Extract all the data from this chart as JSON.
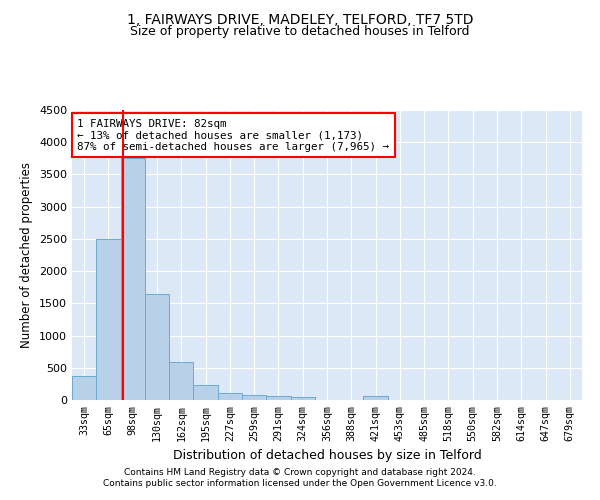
{
  "title1": "1, FAIRWAYS DRIVE, MADELEY, TELFORD, TF7 5TD",
  "title2": "Size of property relative to detached houses in Telford",
  "xlabel": "Distribution of detached houses by size in Telford",
  "ylabel": "Number of detached properties",
  "categories": [
    "33sqm",
    "65sqm",
    "98sqm",
    "130sqm",
    "162sqm",
    "195sqm",
    "227sqm",
    "259sqm",
    "291sqm",
    "324sqm",
    "356sqm",
    "388sqm",
    "421sqm",
    "453sqm",
    "485sqm",
    "518sqm",
    "550sqm",
    "582sqm",
    "614sqm",
    "647sqm",
    "679sqm"
  ],
  "values": [
    370,
    2500,
    3750,
    1640,
    590,
    230,
    110,
    70,
    55,
    40,
    0,
    0,
    55,
    0,
    0,
    0,
    0,
    0,
    0,
    0,
    0
  ],
  "bar_color": "#b8d0e8",
  "bar_edge_color": "#6aaad4",
  "property_line_x": 1.62,
  "vline_color": "red",
  "annotation_text": "1 FAIRWAYS DRIVE: 82sqm\n← 13% of detached houses are smaller (1,173)\n87% of semi-detached houses are larger (7,965) →",
  "annotation_box_color": "white",
  "annotation_box_edge_color": "red",
  "ylim": [
    0,
    4500
  ],
  "yticks": [
    0,
    500,
    1000,
    1500,
    2000,
    2500,
    3000,
    3500,
    4000,
    4500
  ],
  "footer1": "Contains HM Land Registry data © Crown copyright and database right 2024.",
  "footer2": "Contains public sector information licensed under the Open Government Licence v3.0.",
  "background_color": "#dce8f5",
  "grid_color": "white",
  "title1_fontsize": 10,
  "title2_fontsize": 9
}
